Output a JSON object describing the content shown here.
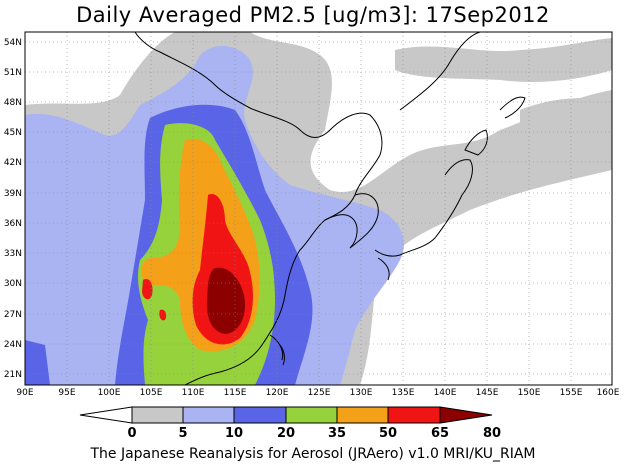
{
  "title": "Daily Averaged PM2.5 [ug/m3]: 17Sep2012",
  "footer": "The Japanese Reanalysis for Aerosol (JRAero) v1.0 MRI/KU_RIAM",
  "colors": {
    "lt5": "#ffffff",
    "5_10": "#c8c8c8",
    "10_20": "#aab4f2",
    "20_35": "#5a64e6",
    "35_50": "#96d23c",
    "50_65": "#f5a019",
    "65_80": "#f01414",
    "gt80": "#8c0000"
  },
  "x_ticks": [
    "90E",
    "95E",
    "100E",
    "105E",
    "110E",
    "115E",
    "120E",
    "125E",
    "130E",
    "135E",
    "140E",
    "145E",
    "150E",
    "155E",
    "160E"
  ],
  "y_ticks": [
    "21N",
    "24N",
    "27N",
    "30N",
    "33N",
    "36N",
    "39N",
    "42N",
    "45N",
    "48N",
    "51N",
    "54N"
  ],
  "colorbar": {
    "levels": [
      "0",
      "5",
      "10",
      "20",
      "35",
      "50",
      "65",
      "80"
    ],
    "colors": [
      "#ffffff",
      "#c8c8c8",
      "#aab4f2",
      "#5a64e6",
      "#96d23c",
      "#f5a019",
      "#f01414",
      "#8c0000"
    ]
  },
  "chart_data": {
    "type": "heatmap",
    "title": "Daily Averaged PM2.5 [ug/m3]: 17Sep2012",
    "x_range": [
      90,
      160
    ],
    "y_range": [
      20,
      55
    ],
    "levels": [
      0,
      5,
      10,
      20,
      35,
      50,
      65,
      80
    ],
    "units": "ug/m3",
    "grid": true,
    "legend": "bottom"
  }
}
